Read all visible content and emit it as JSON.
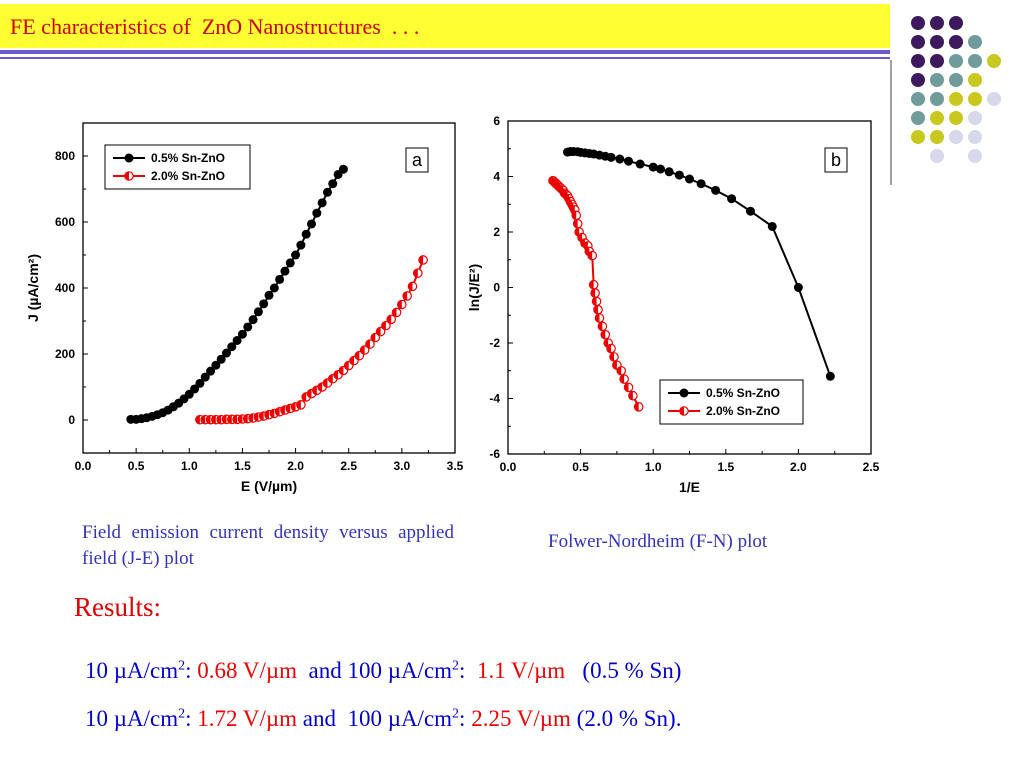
{
  "slide": {
    "title": "FE characteristics of  ZnO Nanostructures  . . .",
    "decor_colors": [
      "#3d1a5e",
      "#6f9c9a",
      "#c8c81e",
      "#d8d8ec"
    ],
    "caption_a": "Field emission current density versus applied field (J-E) plot",
    "caption_b": "Folwer-Nordheim (F-N) plot",
    "results_heading": "Results:",
    "result_lines": [
      [
        {
          "t": "10 µA/cm",
          "c": "blue"
        },
        {
          "t": "2",
          "c": "blue",
          "sup": true
        },
        {
          "t": ": ",
          "c": "blue"
        },
        {
          "t": "0.68 V/µm",
          "c": "red"
        },
        {
          "t": "  and 100 µA/cm",
          "c": "blue"
        },
        {
          "t": "2",
          "c": "blue",
          "sup": true
        },
        {
          "t": ":  ",
          "c": "blue"
        },
        {
          "t": "1.1 V/µm",
          "c": "red"
        },
        {
          "t": "   (0.5 % Sn)",
          "c": "blue"
        }
      ],
      [
        {
          "t": "10 µA/cm",
          "c": "blue"
        },
        {
          "t": "2",
          "c": "blue",
          "sup": true
        },
        {
          "t": ": ",
          "c": "blue"
        },
        {
          "t": "1.72 V/µm",
          "c": "red"
        },
        {
          "t": " and  100 µA/cm",
          "c": "blue"
        },
        {
          "t": "2",
          "c": "blue",
          "sup": true
        },
        {
          "t": ": ",
          "c": "blue"
        },
        {
          "t": "2.25 V/µm",
          "c": "red"
        },
        {
          "t": " (2.0 % Sn).",
          "c": "blue"
        }
      ]
    ]
  },
  "chart_data": [
    {
      "type": "line",
      "panel_label": "a",
      "xlabel": "E (V/µm)",
      "ylabel": "J (µA/cm²)",
      "xlim": [
        0.0,
        3.5
      ],
      "ylim": [
        -100,
        900
      ],
      "xticks": [
        0.0,
        0.5,
        1.0,
        1.5,
        2.0,
        2.5,
        3.0,
        3.5
      ],
      "yticks": [
        0,
        200,
        400,
        600,
        800
      ],
      "xtick_labels": [
        "0.0",
        "0.5",
        "1.0",
        "1.5",
        "2.0",
        "2.5",
        "3.0",
        "3.5"
      ],
      "ytick_labels": [
        "0",
        "200",
        "400",
        "600",
        "800"
      ],
      "grid": false,
      "legend_position": "top-left",
      "series": [
        {
          "name": "0.5% Sn-ZnO",
          "color": "#000000",
          "marker": "filled-circle",
          "x": [
            0.45,
            0.5,
            0.55,
            0.6,
            0.65,
            0.7,
            0.75,
            0.8,
            0.85,
            0.9,
            0.95,
            1.0,
            1.05,
            1.1,
            1.15,
            1.2,
            1.25,
            1.3,
            1.35,
            1.4,
            1.45,
            1.5,
            1.55,
            1.6,
            1.65,
            1.7,
            1.75,
            1.8,
            1.85,
            1.9,
            1.95,
            2.0,
            2.05,
            2.1,
            2.15,
            2.2,
            2.25,
            2.3,
            2.35,
            2.4,
            2.45
          ],
          "y": [
            2,
            2,
            4,
            7,
            11,
            16,
            22,
            30,
            40,
            51,
            64,
            78,
            94,
            111,
            130,
            148,
            166,
            184,
            203,
            222,
            241,
            260,
            282,
            304,
            328,
            352,
            378,
            400,
            426,
            451,
            476,
            500,
            530,
            563,
            594,
            627,
            658,
            690,
            716,
            744,
            760
          ]
        },
        {
          "name": "2.0% Sn-ZnO",
          "color": "#ee0000",
          "marker": "half-filled-circle",
          "x": [
            1.1,
            1.15,
            1.2,
            1.25,
            1.3,
            1.35,
            1.4,
            1.45,
            1.5,
            1.55,
            1.6,
            1.65,
            1.7,
            1.75,
            1.8,
            1.85,
            1.9,
            1.95,
            2.0,
            2.05,
            2.1,
            2.15,
            2.2,
            2.25,
            2.3,
            2.35,
            2.4,
            2.45,
            2.5,
            2.55,
            2.6,
            2.65,
            2.7,
            2.75,
            2.8,
            2.85,
            2.9,
            2.95,
            3.0,
            3.05,
            3.1,
            3.15,
            3.2
          ],
          "y": [
            1,
            1,
            1,
            1,
            1,
            2,
            2,
            2,
            3,
            4,
            6,
            9,
            12,
            16,
            20,
            25,
            30,
            35,
            40,
            46,
            70,
            80,
            90,
            100,
            112,
            125,
            137,
            150,
            165,
            180,
            195,
            212,
            230,
            250,
            268,
            286,
            305,
            326,
            350,
            376,
            405,
            445,
            485
          ]
        }
      ]
    },
    {
      "type": "line",
      "panel_label": "b",
      "xlabel": "1/E",
      "ylabel": "ln(J/E²)",
      "xlim": [
        0.0,
        2.5
      ],
      "ylim": [
        -6,
        6
      ],
      "xticks": [
        0.0,
        0.5,
        1.0,
        1.5,
        2.0,
        2.5
      ],
      "yticks": [
        -6,
        -4,
        -2,
        0,
        2,
        4,
        6
      ],
      "xtick_labels": [
        "0.0",
        "0.5",
        "1.0",
        "1.5",
        "2.0",
        "2.5"
      ],
      "ytick_labels": [
        "-6",
        "-4",
        "-2",
        "0",
        "2",
        "4",
        "6"
      ],
      "grid": false,
      "legend_position": "bottom-right",
      "series": [
        {
          "name": "0.5% Sn-ZnO",
          "color": "#000000",
          "marker": "filled-circle",
          "x": [
            0.41,
            0.43,
            0.45,
            0.48,
            0.5,
            0.53,
            0.56,
            0.59,
            0.63,
            0.67,
            0.71,
            0.77,
            0.83,
            0.91,
            1.0,
            1.05,
            1.11,
            1.18,
            1.25,
            1.33,
            1.43,
            1.54,
            1.67,
            1.82,
            2.0,
            2.22
          ],
          "y": [
            4.88,
            4.9,
            4.9,
            4.89,
            4.87,
            4.85,
            4.83,
            4.81,
            4.77,
            4.73,
            4.69,
            4.63,
            4.55,
            4.45,
            4.34,
            4.27,
            4.17,
            4.05,
            3.91,
            3.74,
            3.5,
            3.2,
            2.75,
            2.2,
            0.0,
            -3.2
          ]
        },
        {
          "name": "2.0% Sn-ZnO",
          "color": "#ee0000",
          "marker": "half-filled-circle",
          "x": [
            0.31,
            0.32,
            0.33,
            0.34,
            0.35,
            0.36,
            0.37,
            0.38,
            0.39,
            0.4,
            0.41,
            0.42,
            0.43,
            0.44,
            0.45,
            0.46,
            0.47,
            0.48,
            0.49,
            0.51,
            0.53,
            0.55,
            0.56,
            0.58,
            0.59,
            0.6,
            0.61,
            0.62,
            0.63,
            0.65,
            0.67,
            0.69,
            0.71,
            0.73,
            0.75,
            0.78,
            0.8,
            0.83,
            0.86,
            0.9
          ],
          "y": [
            3.85,
            3.8,
            3.75,
            3.7,
            3.65,
            3.6,
            3.55,
            3.5,
            3.4,
            3.35,
            3.3,
            3.2,
            3.1,
            3.0,
            2.9,
            2.8,
            2.6,
            2.3,
            2.0,
            1.8,
            1.6,
            1.5,
            1.3,
            1.15,
            0.1,
            -0.2,
            -0.5,
            -0.8,
            -1.1,
            -1.4,
            -1.7,
            -2.0,
            -2.2,
            -2.5,
            -2.8,
            -3.0,
            -3.3,
            -3.6,
            -3.9,
            -4.3
          ]
        }
      ]
    }
  ]
}
